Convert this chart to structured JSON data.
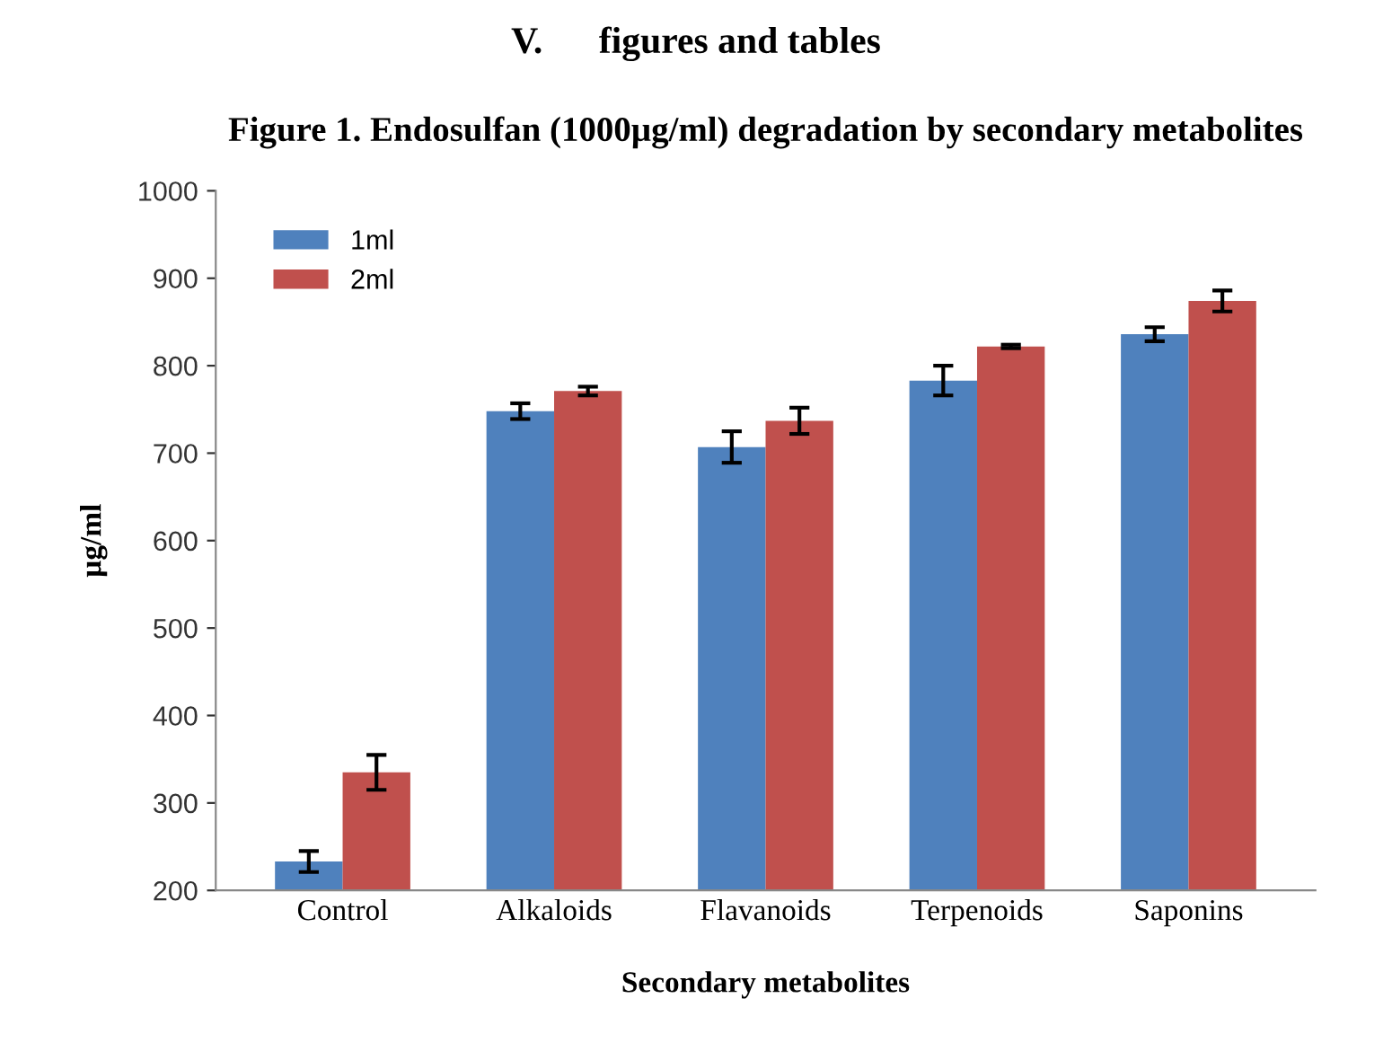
{
  "chart_data": {
    "type": "bar",
    "title": "Figure 1. Endosulfan (1000µg/ml) degradation by secondary metabolites",
    "xlabel": "Secondary metabolites",
    "ylabel": "µg/ml",
    "categories": [
      "Control",
      "Alkaloids",
      "Flavanoids",
      "Terpenoids",
      "Saponins"
    ],
    "series": [
      {
        "name": "1ml",
        "color": "#4f81bd",
        "values": [
          233,
          748,
          707,
          783,
          836
        ],
        "errors": [
          12,
          9,
          18,
          17,
          8
        ]
      },
      {
        "name": "2ml",
        "color": "#c0504d",
        "values": [
          335,
          771,
          737,
          822,
          874
        ],
        "errors": [
          20,
          5,
          15,
          2,
          12
        ]
      }
    ],
    "ylim": [
      200,
      1000
    ],
    "yticks": [
      200,
      300,
      400,
      500,
      600,
      700,
      800,
      900,
      1000
    ],
    "grid": false,
    "legend": "top left",
    "annotations": [
      "V.      figures and tables"
    ]
  }
}
